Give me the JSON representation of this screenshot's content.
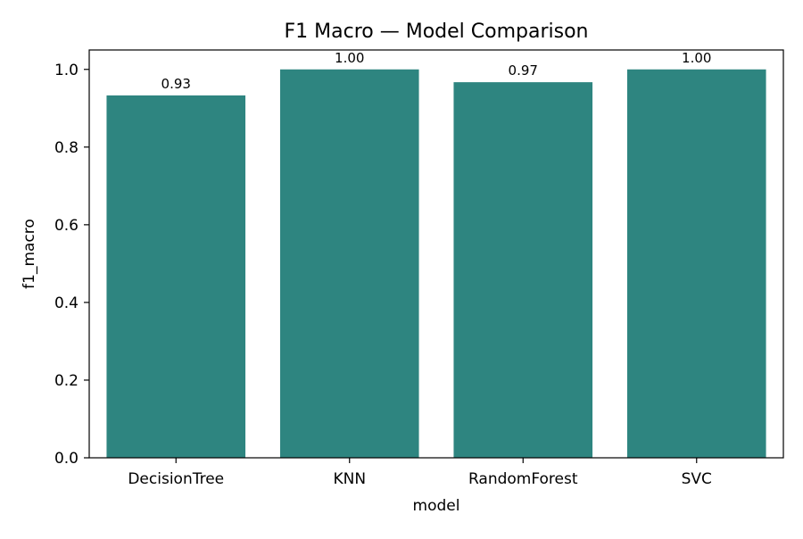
{
  "chart_data": {
    "type": "bar",
    "title": "F1 Macro — Model Comparison",
    "xlabel": "model",
    "ylabel": "f1_macro",
    "categories": [
      "DecisionTree",
      "KNN",
      "RandomForest",
      "SVC"
    ],
    "values": [
      0.933,
      1.0,
      0.967,
      1.0
    ],
    "value_labels": [
      "0.93",
      "1.00",
      "0.97",
      "1.00"
    ],
    "ylim": [
      0,
      1.05
    ],
    "yticks": [
      0.0,
      0.2,
      0.4,
      0.6,
      0.8,
      1.0
    ],
    "ytick_labels": [
      "0.0",
      "0.2",
      "0.4",
      "0.6",
      "0.8",
      "1.0"
    ],
    "grid": false,
    "bar_color": "#2e8580"
  }
}
